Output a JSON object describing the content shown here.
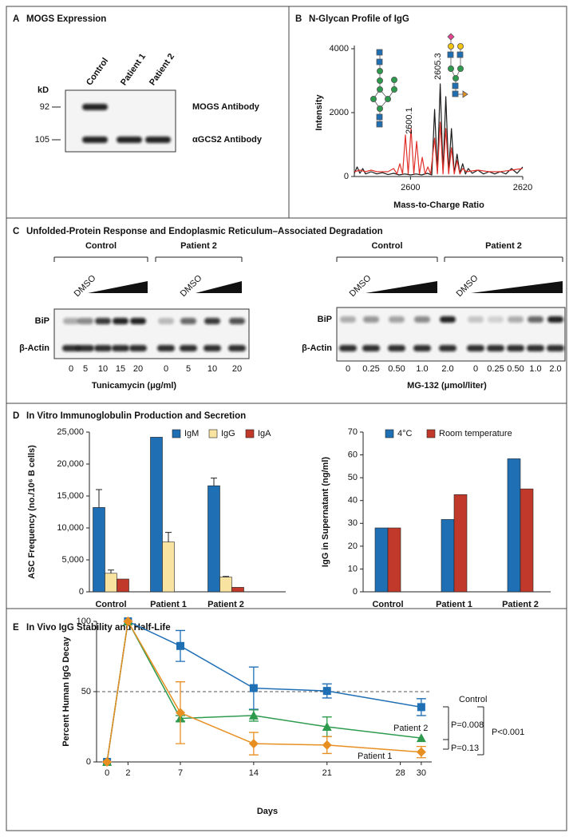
{
  "panels": [
    {
      "letter": "A",
      "title": "MOGS Expression"
    },
    {
      "letter": "B",
      "title": "N-Glycan Profile of IgG"
    },
    {
      "letter": "C",
      "title": "Unfolded-Protein Response and Endoplasmic Reticulum–Associated Degradation"
    },
    {
      "letter": "D",
      "title": "In Vitro Immunoglobulin Production and Secretion"
    },
    {
      "letter": "E",
      "title": "In Vivo IgG Stability and Half-Life"
    }
  ],
  "mogs_blot": {
    "unit": "kD",
    "lanes": [
      "Control",
      "Patient 1",
      "Patient 2"
    ],
    "bands": [
      {
        "marker": 92,
        "label": "MOGS Antibody"
      },
      {
        "marker": 105,
        "label": "αGCS2 Antibody"
      }
    ]
  },
  "upr_blot": {
    "left": {
      "groups": [
        "Control",
        "Patient 2"
      ],
      "vehicle": "DMSO",
      "rows": [
        "BiP",
        "β-Actin"
      ],
      "doses": [
        "0",
        "5",
        "10",
        "15",
        "20",
        "0",
        "5",
        "10",
        "20"
      ],
      "axis_label": "Tunicamycin (μg/ml)"
    },
    "right": {
      "groups": [
        "Control",
        "Patient 2"
      ],
      "vehicle": "DMSO",
      "rows": [
        "BiP",
        "β-Actin"
      ],
      "doses": [
        "0",
        "0.25",
        "0.50",
        "1.0",
        "2.0",
        "0",
        "0.25",
        "0.50",
        "1.0",
        "2.0"
      ],
      "axis_label": "MG-132 (μmol/liter)"
    }
  },
  "chart_data": [
    {
      "type": "line",
      "xlabel": "Mass-to-Charge Ratio",
      "ylabel": "Intensity",
      "xlim": [
        2590,
        2620
      ],
      "ylim": [
        0,
        4000
      ],
      "xticks": [
        2600,
        2620
      ],
      "yticks": [
        0,
        2000,
        4000
      ],
      "annotations": [
        "2600.1",
        "2605.3"
      ],
      "series": [
        {
          "color": "#1a1a1a",
          "x": [
            2590,
            2590.5,
            2591,
            2591.5,
            2592,
            2593,
            2594,
            2595,
            2596,
            2597,
            2598,
            2599,
            2600,
            2601,
            2602,
            2603,
            2603.8,
            2604.3,
            2604.8,
            2605.3,
            2605.8,
            2606.3,
            2606.8,
            2607.3,
            2607.8,
            2608.3,
            2608.8,
            2609.3,
            2609.8,
            2610.3,
            2611,
            2612,
            2613,
            2614,
            2615,
            2616,
            2617,
            2618,
            2619,
            2620
          ],
          "values": [
            100,
            300,
            100,
            250,
            80,
            150,
            80,
            120,
            60,
            100,
            50,
            80,
            50,
            80,
            50,
            100,
            50,
            2100,
            150,
            2900,
            150,
            2500,
            150,
            1500,
            100,
            700,
            100,
            400,
            80,
            250,
            100,
            200,
            80,
            150,
            80,
            150,
            80,
            250,
            100,
            300
          ]
        },
        {
          "color": "#e0302a",
          "x": [
            2590,
            2591,
            2592,
            2593,
            2594,
            2595,
            2596,
            2597,
            2597.6,
            2598.1,
            2598.6,
            2599.1,
            2599.6,
            2600.1,
            2600.6,
            2601.1,
            2601.6,
            2602.1,
            2602.6,
            2603.1,
            2603.6,
            2604.3,
            2604.8,
            2605.3,
            2605.8,
            2606.3,
            2606.8,
            2607.3,
            2607.8,
            2608.3,
            2608.8,
            2609.3,
            2610,
            2612,
            2614,
            2616,
            2618,
            2620
          ],
          "values": [
            150,
            200,
            150,
            200,
            150,
            150,
            150,
            250,
            80,
            400,
            80,
            1300,
            80,
            1500,
            80,
            1100,
            80,
            600,
            80,
            300,
            80,
            1200,
            80,
            1700,
            80,
            1500,
            80,
            900,
            80,
            500,
            80,
            250,
            150,
            200,
            150,
            150,
            200,
            250
          ]
        }
      ]
    },
    {
      "type": "bar",
      "ylabel": "ASC Frequency (no./10⁶ B cells)",
      "categories": [
        "Control",
        "Patient 1",
        "Patient 2"
      ],
      "ylim": [
        0,
        25000
      ],
      "yticks": [
        0,
        {
          "value": 5000,
          "label": "5,000"
        },
        {
          "value": 10000,
          "label": "10,000"
        },
        {
          "value": 15000,
          "label": "15,000"
        },
        {
          "value": 20000,
          "label": "20,000"
        },
        {
          "value": 25000,
          "label": "25,000"
        }
      ],
      "series": [
        {
          "name": "IgM",
          "color": "#1f6fb5",
          "values": [
            13200,
            24200,
            16600
          ],
          "errors": [
            2800,
            null,
            1200
          ]
        },
        {
          "name": "IgG",
          "color": "#f8e3a0",
          "values": [
            2900,
            7800,
            2300
          ],
          "errors": [
            500,
            1500,
            100
          ]
        },
        {
          "name": "IgA",
          "color": "#c0392b",
          "values": [
            2000,
            null,
            700
          ]
        }
      ]
    },
    {
      "type": "bar",
      "ylabel": "IgG in Supernatant (ng/ml)",
      "categories": [
        "Control",
        "Patient 1",
        "Patient 2"
      ],
      "ylim": [
        0,
        70
      ],
      "yticks": [
        0,
        10,
        20,
        30,
        40,
        50,
        60,
        70
      ],
      "series": [
        {
          "name": "4°C",
          "color": "#1f6fb5",
          "values": [
            28,
            31.7,
            58.3
          ]
        },
        {
          "name": "Room temperature",
          "color": "#c0392b",
          "values": [
            28,
            42.6,
            45.1
          ]
        }
      ]
    },
    {
      "type": "line",
      "xlabel": "Days",
      "ylabel": "Percent Human IgG Decay",
      "x": [
        0,
        2,
        7,
        14,
        21,
        30
      ],
      "xlim": [
        -1,
        31
      ],
      "ylim": [
        0,
        100
      ],
      "xticks": [
        0,
        2,
        7,
        14,
        21,
        28,
        30
      ],
      "yticks": [
        0,
        50,
        100
      ],
      "reference_line": 50,
      "annotations": [
        "P=0.008",
        "P=0.13",
        "P<0.001"
      ],
      "series": [
        {
          "name": "Control",
          "color": "#1f6fb5",
          "marker": "square",
          "values": [
            0,
            100,
            82.5,
            52.5,
            50.5,
            39
          ],
          "errors": [
            null,
            null,
            11,
            15,
            5,
            6
          ]
        },
        {
          "name": "Patient 2",
          "color": "#2e9a4e",
          "marker": "triangle",
          "values": [
            0,
            100,
            31,
            33,
            25,
            17
          ],
          "errors": [
            null,
            null,
            2,
            4,
            7,
            null
          ]
        },
        {
          "name": "Patient 1",
          "color": "#e88f22",
          "marker": "diamond",
          "values": [
            0,
            100,
            35,
            13,
            12,
            7
          ],
          "errors": [
            null,
            null,
            22,
            8,
            6,
            4
          ]
        }
      ]
    }
  ]
}
